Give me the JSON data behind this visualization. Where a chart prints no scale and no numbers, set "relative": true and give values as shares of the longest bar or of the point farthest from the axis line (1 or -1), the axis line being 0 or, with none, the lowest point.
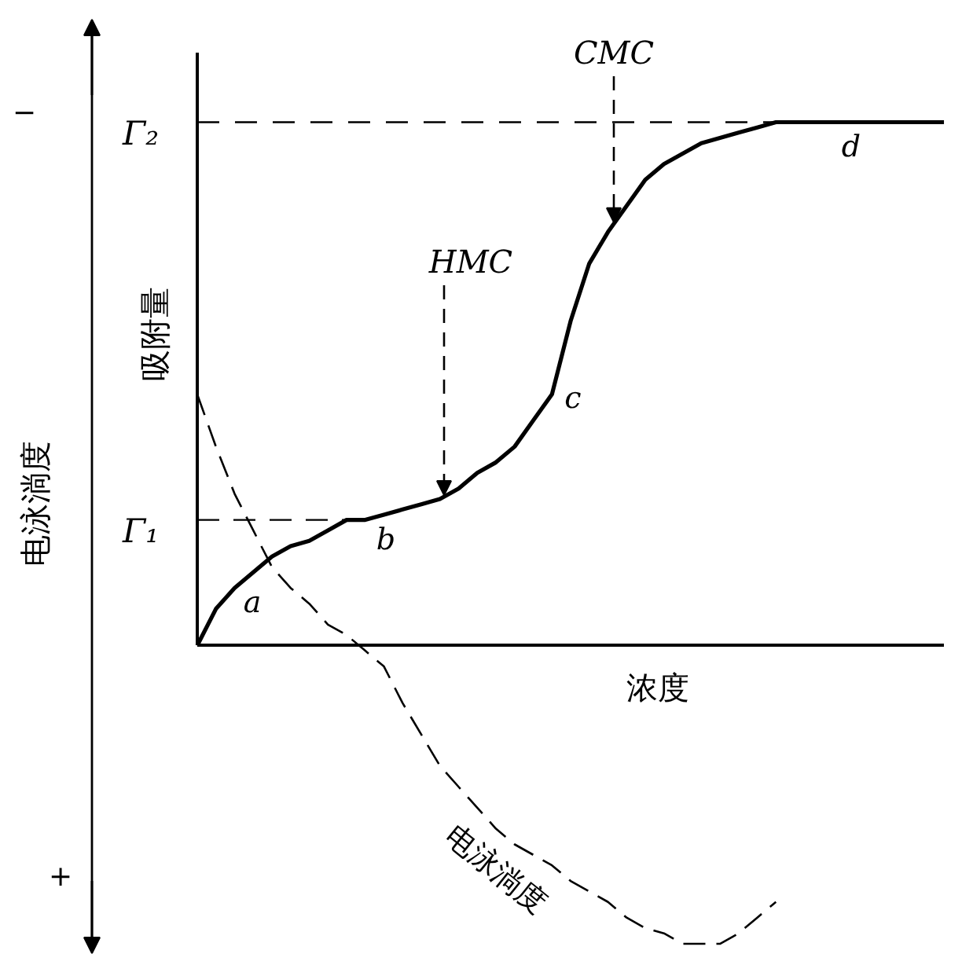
{
  "chart_data": {
    "type": "line",
    "relative": true,
    "xlabel": "浓度",
    "ylabel": "吸附量",
    "y2label": "电泳淌度",
    "categories": [
      null,
      null,
      null,
      null,
      null,
      null,
      null,
      null,
      null,
      null,
      null,
      null,
      null,
      null,
      null,
      null,
      null,
      null,
      null,
      null,
      null,
      null,
      null,
      null,
      null,
      null,
      null,
      null,
      null,
      null,
      null,
      null,
      null,
      null,
      null,
      null,
      null,
      null,
      null,
      null,
      null
    ],
    "series": [
      {
        "color": "#000000",
        "line_style": "solid",
        "values": [
          0,
          0.07,
          0.11,
          0.14,
          0.17,
          0.19,
          0.2,
          0.22,
          0.24,
          0.24,
          0.25,
          0.26,
          0.27,
          0.28,
          0.3,
          0.33,
          0.35,
          0.38,
          0.43,
          0.48,
          0.62,
          0.73,
          0.79,
          0.84,
          0.89,
          0.92,
          0.94,
          0.96,
          0.97,
          0.98,
          0.99,
          1,
          1,
          1,
          1,
          1,
          1,
          1,
          1,
          1,
          1
        ]
      },
      {
        "name": "电泳淌度",
        "color": "#000000",
        "line_style": "dashed",
        "values": [
          0.48,
          0.38,
          0.29,
          0.22,
          0.15,
          0.11,
          0.08,
          0.04,
          0.02,
          -0.01,
          -0.04,
          -0.11,
          -0.17,
          -0.23,
          -0.27,
          -0.31,
          -0.35,
          -0.38,
          -0.4,
          -0.42,
          -0.45,
          -0.47,
          -0.49,
          -0.52,
          -0.54,
          -0.55,
          -0.57,
          -0.57,
          -0.57,
          -0.55,
          -0.52,
          -0.49,
          null,
          null,
          null,
          null,
          null,
          null,
          null,
          null,
          null
        ]
      }
    ],
    "ref_lines": [
      {
        "axis": "y",
        "value": 0.24,
        "label": "Γ₁",
        "line_style": "dashed",
        "color": "#000000"
      },
      {
        "axis": "y",
        "value": 1,
        "label": "Γ₂",
        "line_style": "dashed",
        "color": "#000000"
      }
    ],
    "annotations": [
      "HMC",
      "CMC",
      "a",
      "b",
      "c",
      "d",
      "−",
      "+"
    ]
  }
}
